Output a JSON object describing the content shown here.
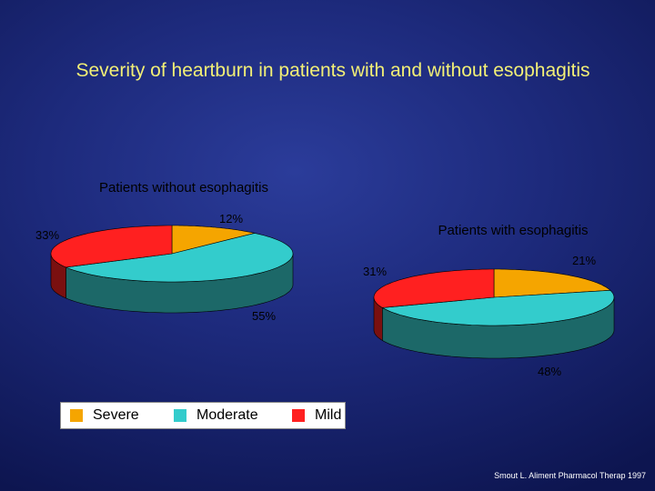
{
  "slide": {
    "title": "Severity of heartburn in patients with and without esophagitis",
    "source": "Smout L. Aliment Pharmacol Therap 1997",
    "background_color": "#1d2a7c",
    "title_color": "#f2ef76"
  },
  "legend": {
    "items": [
      {
        "label": "Severe",
        "color": "#f5a500"
      },
      {
        "label": "Moderate",
        "color": "#33cccc"
      },
      {
        "label": "Mild",
        "color": "#ff2020"
      }
    ]
  },
  "chart_data": [
    {
      "type": "pie",
      "title": "Patients without  esophagitis",
      "categories": [
        "Severe",
        "Moderate",
        "Mild"
      ],
      "values": [
        12,
        55,
        33
      ],
      "labels": [
        "12%",
        "55%",
        "33%"
      ],
      "colors": [
        "#f5a500",
        "#33cccc",
        "#ff2020"
      ],
      "style": "3d"
    },
    {
      "type": "pie",
      "title": "Patients with esophagitis",
      "categories": [
        "Severe",
        "Moderate",
        "Mild"
      ],
      "values": [
        21,
        48,
        31
      ],
      "labels": [
        "21%",
        "48%",
        "31%"
      ],
      "colors": [
        "#f5a500",
        "#33cccc",
        "#ff2020"
      ],
      "style": "3d"
    }
  ]
}
